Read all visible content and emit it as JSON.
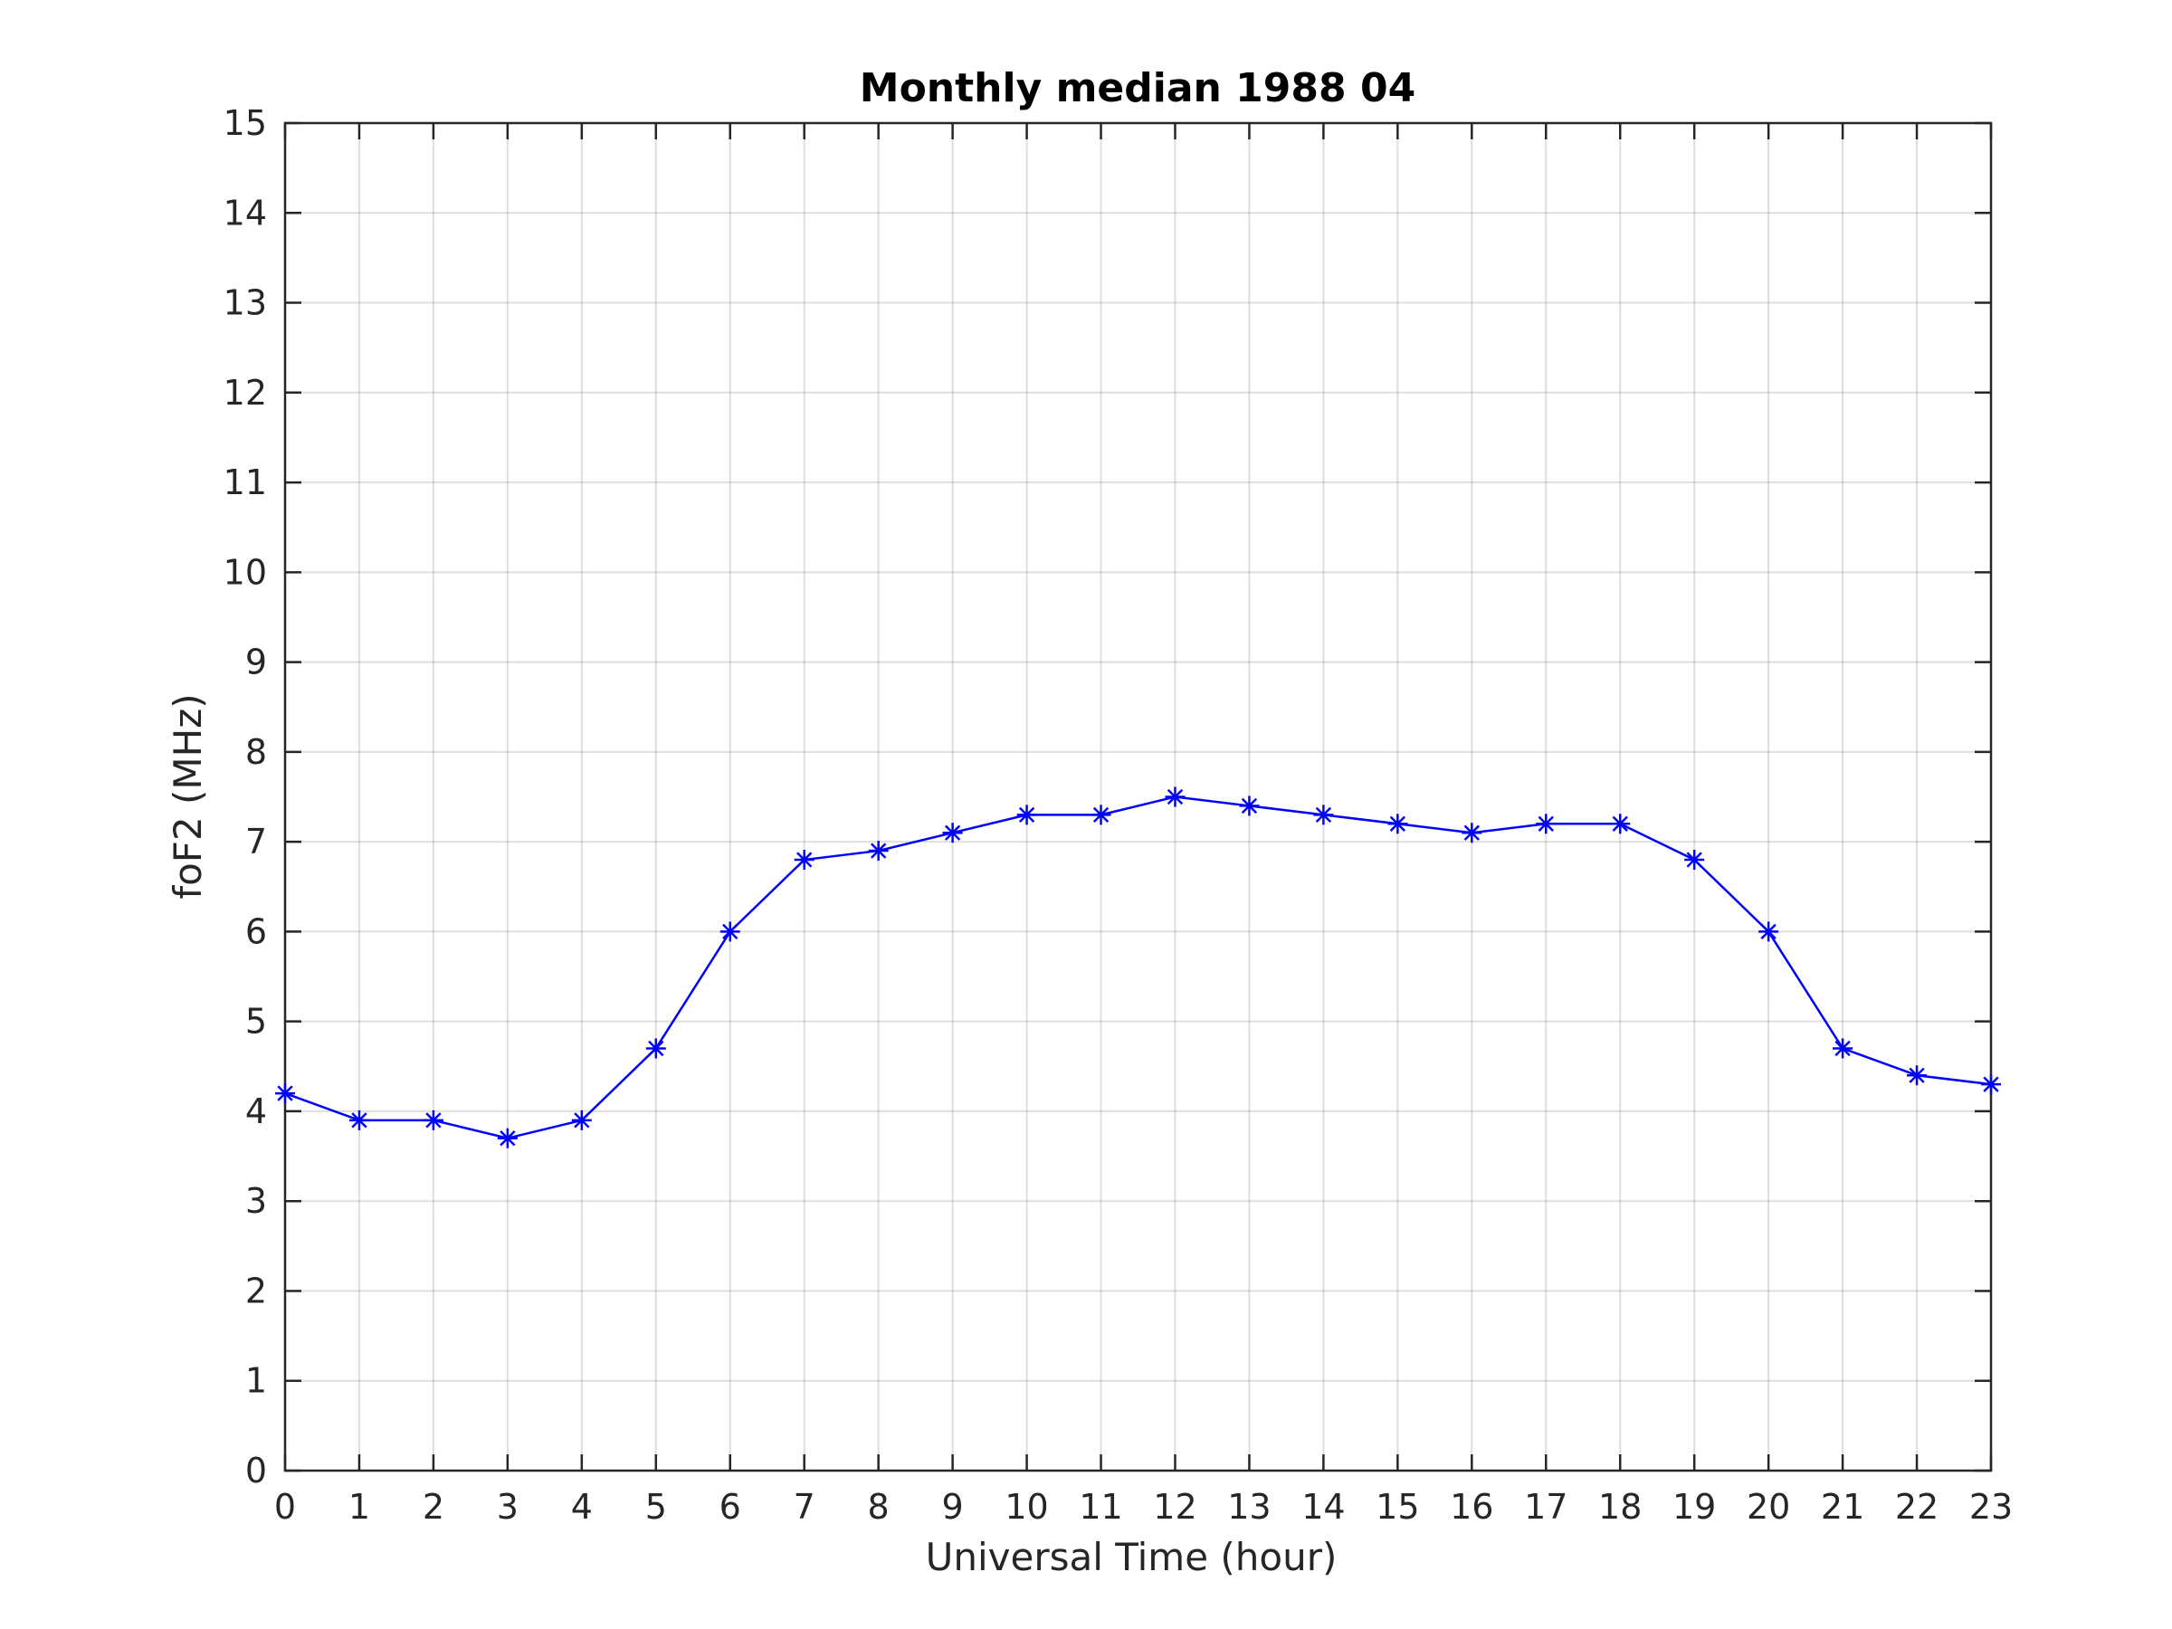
{
  "chart_data": {
    "type": "line",
    "title": "Monthly median 1988 04",
    "xlabel": "Universal Time (hour)",
    "ylabel": "foF2 (MHz)",
    "xlim": [
      0,
      23
    ],
    "ylim": [
      0,
      15
    ],
    "xticks": [
      0,
      1,
      2,
      3,
      4,
      5,
      6,
      7,
      8,
      9,
      10,
      11,
      12,
      13,
      14,
      15,
      16,
      17,
      18,
      19,
      20,
      21,
      22,
      23
    ],
    "yticks": [
      0,
      1,
      2,
      3,
      4,
      5,
      6,
      7,
      8,
      9,
      10,
      11,
      12,
      13,
      14,
      15
    ],
    "grid": true,
    "marker": "asterisk",
    "series": [
      {
        "color": "#0000ff",
        "x": [
          0,
          1,
          2,
          3,
          4,
          5,
          6,
          7,
          8,
          9,
          10,
          11,
          12,
          13,
          14,
          15,
          16,
          17,
          18,
          19,
          20,
          21,
          22,
          23
        ],
        "y": [
          4.2,
          3.9,
          3.9,
          3.7,
          3.9,
          4.7,
          6.0,
          6.8,
          6.9,
          7.1,
          7.3,
          7.3,
          7.5,
          7.4,
          7.3,
          7.2,
          7.1,
          7.2,
          7.2,
          6.8,
          6.0,
          4.7,
          4.4,
          4.3
        ]
      }
    ]
  }
}
